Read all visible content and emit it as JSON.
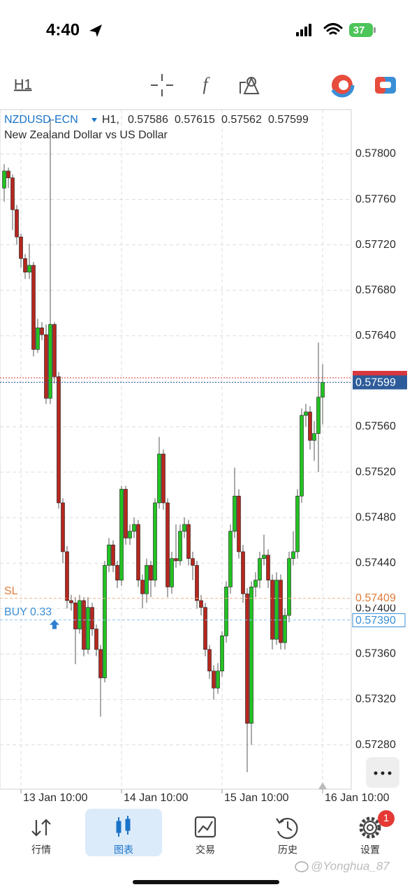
{
  "status_bar": {
    "time": "4:40",
    "battery": "37"
  },
  "toolbar": {
    "timeframe": "H1"
  },
  "chart_data": {
    "type": "candlestick",
    "symbol": "NZDUSD-ECN",
    "timeframe": "H1,",
    "description": "New Zealand Dollar vs US Dollar",
    "open": [
      0.5777,
      0.57785,
      0.57779,
      0.57751,
      0.57727,
      0.57708,
      0.57696,
      0.57702,
      0.57628,
      0.57647,
      0.57641,
      0.57585,
      0.5765,
      0.57604,
      0.57493,
      0.5745,
      0.57407,
      0.57405,
      0.57382,
      0.57407,
      0.57364,
      0.57401,
      0.57382,
      0.57364,
      0.57339,
      0.57438,
      0.57456,
      0.57438,
      0.57425,
      0.57505,
      0.57462,
      0.57468,
      0.57474,
      0.57425,
      0.57413,
      0.57438,
      0.57425,
      0.57493,
      0.57536,
      0.57493,
      0.57419,
      0.57444,
      0.57442,
      0.57468,
      0.57474,
      0.57444,
      0.57438,
      0.57407,
      0.57401,
      0.57364,
      0.57345,
      0.5733,
      0.57345,
      0.57376,
      0.57419,
      0.57468,
      0.57499,
      0.5745,
      0.57413,
      0.57299,
      0.57419,
      0.57425,
      0.57444,
      0.57447,
      0.57425,
      0.57373,
      0.57425,
      0.5737,
      0.57394,
      0.57444,
      0.5745,
      0.57499,
      0.5757,
      0.57573,
      0.57548,
      0.57554,
      0.57586
    ],
    "high": [
      0.57791,
      0.57788,
      0.57782,
      0.57755,
      0.5773,
      0.57712,
      0.57721,
      0.57705,
      0.57655,
      0.57652,
      0.5765,
      0.57831,
      0.57652,
      0.57608,
      0.57497,
      0.57455,
      0.57412,
      0.5741,
      0.57412,
      0.5741,
      0.5741,
      0.57405,
      0.57386,
      0.57368,
      0.57442,
      0.57462,
      0.5746,
      0.57442,
      0.57508,
      0.57508,
      0.57474,
      0.5748,
      0.57478,
      0.5743,
      0.57444,
      0.57442,
      0.57497,
      0.57551,
      0.5754,
      0.57497,
      0.5745,
      0.57474,
      0.57474,
      0.5748,
      0.57478,
      0.5745,
      0.57442,
      0.57412,
      0.57405,
      0.57368,
      0.5735,
      0.57352,
      0.5738,
      0.57424,
      0.57474,
      0.57524,
      0.57505,
      0.57456,
      0.57418,
      0.57424,
      0.57432,
      0.5745,
      0.57465,
      0.57452,
      0.5743,
      0.57432,
      0.5743,
      0.574,
      0.5745,
      0.57468,
      0.57505,
      0.57576,
      0.5758,
      0.57578,
      0.57565,
      0.57634,
      0.57615
    ],
    "low": [
      0.57758,
      0.5777,
      0.57733,
      0.5772,
      0.577,
      0.5769,
      0.5769,
      0.57622,
      0.57625,
      0.57636,
      0.5758,
      0.5758,
      0.57598,
      0.57488,
      0.5744,
      0.574,
      0.57398,
      0.57351,
      0.57378,
      0.57358,
      0.5736,
      0.57376,
      0.57358,
      0.57305,
      0.57335,
      0.57432,
      0.57432,
      0.57418,
      0.5742,
      0.57456,
      0.57456,
      0.57462,
      0.57419,
      0.574,
      0.57405,
      0.5741,
      0.57419,
      0.57488,
      0.57487,
      0.5741,
      0.57413,
      0.57436,
      0.57438,
      0.57462,
      0.57438,
      0.57425,
      0.574,
      0.57394,
      0.57358,
      0.57338,
      0.5732,
      0.57325,
      0.5734,
      0.5737,
      0.57413,
      0.57462,
      0.57444,
      0.57405,
      0.57256,
      0.5728,
      0.5741,
      0.57418,
      0.57438,
      0.57418,
      0.57364,
      0.57368,
      0.57364,
      0.57364,
      0.57388,
      0.57438,
      0.57444,
      0.57493,
      0.5756,
      0.5754,
      0.5753,
      0.5752,
      0.57562
    ],
    "close": [
      0.57785,
      0.57779,
      0.57751,
      0.57727,
      0.57708,
      0.57696,
      0.57702,
      0.57628,
      0.57647,
      0.57641,
      0.57585,
      0.5765,
      0.57604,
      0.57493,
      0.5745,
      0.57407,
      0.57405,
      0.57382,
      0.57407,
      0.57364,
      0.57401,
      0.57382,
      0.57364,
      0.57339,
      0.57438,
      0.57456,
      0.57438,
      0.57425,
      0.57505,
      0.57462,
      0.57468,
      0.57474,
      0.57425,
      0.57413,
      0.57438,
      0.57425,
      0.57493,
      0.57536,
      0.57493,
      0.57419,
      0.57444,
      0.57442,
      0.57468,
      0.57474,
      0.57444,
      0.57438,
      0.57407,
      0.57401,
      0.57364,
      0.57345,
      0.5733,
      0.57345,
      0.57376,
      0.57419,
      0.57468,
      0.57499,
      0.5745,
      0.57413,
      0.57299,
      0.57419,
      0.57425,
      0.57444,
      0.57447,
      0.57425,
      0.57373,
      0.57425,
      0.5737,
      0.57394,
      0.57444,
      0.5745,
      0.57499,
      0.5757,
      0.57573,
      0.57548,
      0.57554,
      0.57586,
      0.57599
    ],
    "up_color": "#22c322",
    "down_color": "#b5271e",
    "ylim": [
      0.57241,
      0.57839
    ],
    "yticks": [
      {
        "value": 0.5728,
        "label": "0.57280"
      },
      {
        "value": 0.5732,
        "label": "0.57320"
      },
      {
        "value": 0.5736,
        "label": "0.57360"
      },
      {
        "value": 0.574,
        "label": "0.57400"
      },
      {
        "value": 0.5744,
        "label": "0.57440"
      },
      {
        "value": 0.5748,
        "label": "0.57480"
      },
      {
        "value": 0.5752,
        "label": "0.57520"
      },
      {
        "value": 0.5756,
        "label": "0.57560"
      },
      {
        "value": 0.576,
        "label": "0.57600"
      },
      {
        "value": 0.5764,
        "label": "0.57640"
      },
      {
        "value": 0.5768,
        "label": "0.57680"
      },
      {
        "value": 0.5772,
        "label": "0.57720"
      },
      {
        "value": 0.5776,
        "label": "0.57760"
      },
      {
        "value": 0.578,
        "label": "0.57800"
      }
    ],
    "xticks": [
      {
        "value": 4,
        "label": "13 Jan 10:00"
      },
      {
        "value": 28,
        "label": "14 Jan 10:00"
      },
      {
        "value": 52,
        "label": "15 Jan 10:00"
      },
      {
        "value": 76,
        "label": "16 Jan 10:00"
      }
    ],
    "grid": true,
    "ask": 0.57603,
    "sl": {
      "label": "SL",
      "value": 0.57409
    },
    "order": {
      "label": "BUY 0.33",
      "value": 0.5739,
      "value_label": "0.57390"
    }
  },
  "tabs": [
    "行情",
    "图表",
    "交易",
    "历史",
    "设置"
  ],
  "badge": "1",
  "watermark": "@Yonghua_87"
}
